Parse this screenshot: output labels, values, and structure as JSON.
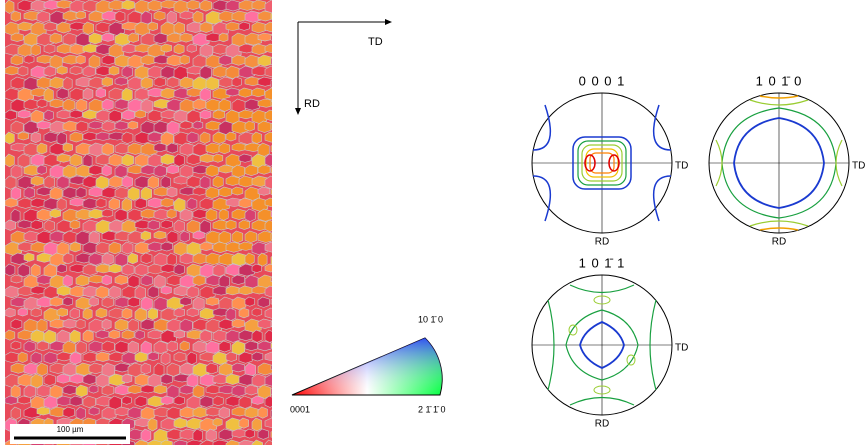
{
  "orientation_axes": {
    "horizontal": "TD",
    "vertical": "RD"
  },
  "scale_bar": "100 µm",
  "ipf_legend": {
    "corner_basal": "0001",
    "corner_prism": "10 1̄ 0",
    "corner_a": "2 1̄ 1̄ 0"
  },
  "pole_figures": [
    {
      "title": "0 0 0 1",
      "x_label": "TD",
      "y_label": "RD"
    },
    {
      "title": "1 0 1̄ 0",
      "x_label": "TD",
      "y_label": "RD"
    },
    {
      "title": "1 0 1̄ 1",
      "x_label": "TD",
      "y_label": "RD"
    }
  ]
}
